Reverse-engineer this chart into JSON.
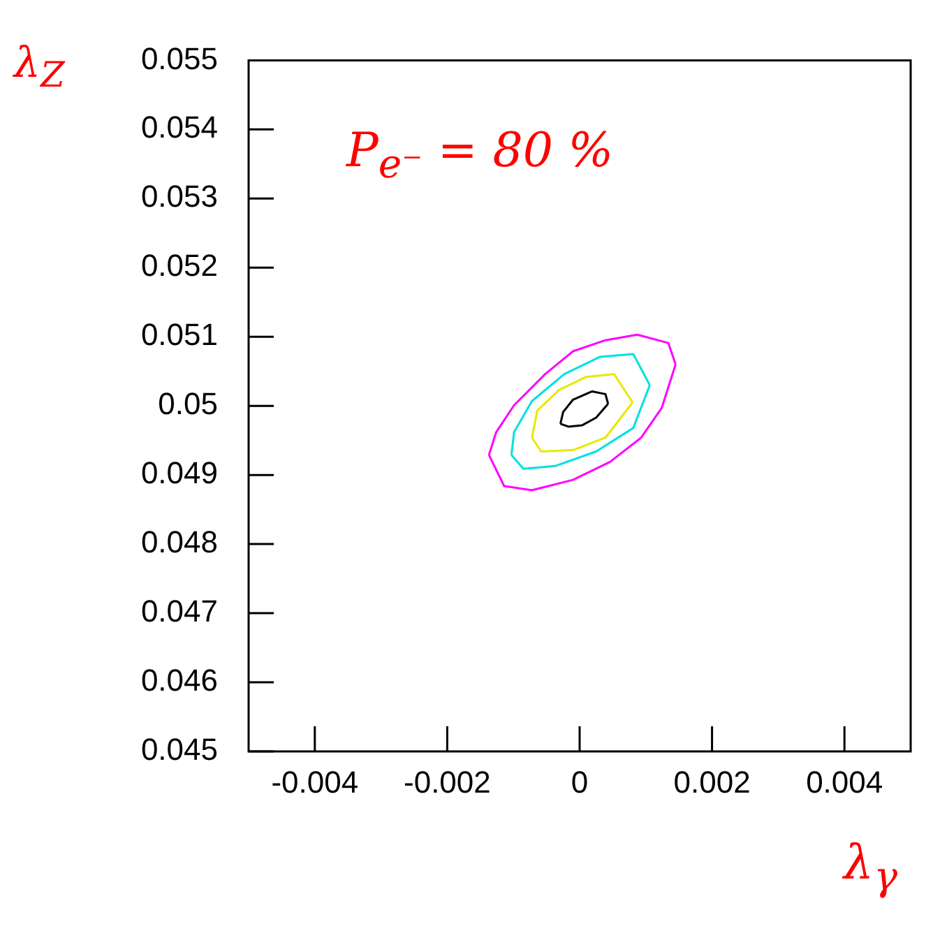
{
  "chart_data": {
    "type": "line",
    "xlabel": "λ$_{γ}$",
    "ylabel": "λ$_{Z}$",
    "annotations": [
      "P$_{e⁻}$ = 80 %"
    ],
    "xlim": [
      -0.005,
      0.005
    ],
    "xticks": [
      -0.004,
      -0.002,
      0,
      0.002,
      0.004
    ],
    "ylim": [
      0.045,
      0.055
    ],
    "yticks": [
      0.045,
      0.046,
      0.047,
      0.048,
      0.049,
      0.05,
      0.051,
      0.052,
      0.053,
      0.054,
      0.055
    ],
    "grid": false,
    "legend": false,
    "marker": "none",
    "series": [
      {
        "color": "#ff00ff",
        "x": [
          -0.00137,
          -0.00114,
          -0.00072,
          -0.0001,
          0.00046,
          0.00093,
          0.00124,
          0.00145
        ],
        "values": [
          0.04929,
          0.04884,
          0.04878,
          0.04893,
          0.04919,
          0.04954,
          0.04997,
          0.0506
        ]
      },
      {
        "color": "#ff00ff",
        "x": [
          -0.00137,
          -0.00126,
          -0.00099,
          -0.00052,
          -0.0001,
          0.00039,
          0.00087,
          0.00134,
          0.00145
        ],
        "values": [
          0.04929,
          0.04962,
          0.05001,
          0.05046,
          0.05079,
          0.05095,
          0.05103,
          0.05091,
          0.0506
        ]
      },
      {
        "color": "#00e0e0",
        "x": [
          -0.00103,
          -0.00085,
          -0.00037,
          0.00025,
          0.00081,
          0.00106
        ],
        "values": [
          0.04929,
          0.04909,
          0.04913,
          0.04934,
          0.04968,
          0.0503
        ]
      },
      {
        "color": "#00e0e0",
        "x": [
          -0.00103,
          -0.00099,
          -0.00072,
          -0.00023,
          0.00031,
          0.00081,
          0.00106
        ],
        "values": [
          0.04929,
          0.04962,
          0.05007,
          0.05046,
          0.05071,
          0.05075,
          0.0503
        ]
      },
      {
        "color": "#e8e800",
        "x": [
          -0.00072,
          -0.00058,
          -0.0001,
          0.00039,
          0.0008
        ],
        "values": [
          0.04954,
          0.04934,
          0.04936,
          0.04954,
          0.05005
        ]
      },
      {
        "color": "#e8e800",
        "x": [
          -0.00072,
          -0.00064,
          -0.00031,
          0.0001,
          0.00052,
          0.0008
        ],
        "values": [
          0.04954,
          0.04993,
          0.05023,
          0.05042,
          0.05046,
          0.05005
        ]
      },
      {
        "color": "#000000",
        "x": [
          -0.00029,
          -0.00017,
          4e-05,
          0.00025,
          0.00043
        ],
        "values": [
          0.04974,
          0.0497,
          0.04972,
          0.04983,
          0.05003
        ]
      },
      {
        "color": "#000000",
        "x": [
          -0.00029,
          -0.00025,
          -0.0001,
          0.00019,
          0.00039,
          0.00043
        ],
        "values": [
          0.04974,
          0.04991,
          0.05009,
          0.05021,
          0.05017,
          0.05003
        ]
      }
    ]
  }
}
